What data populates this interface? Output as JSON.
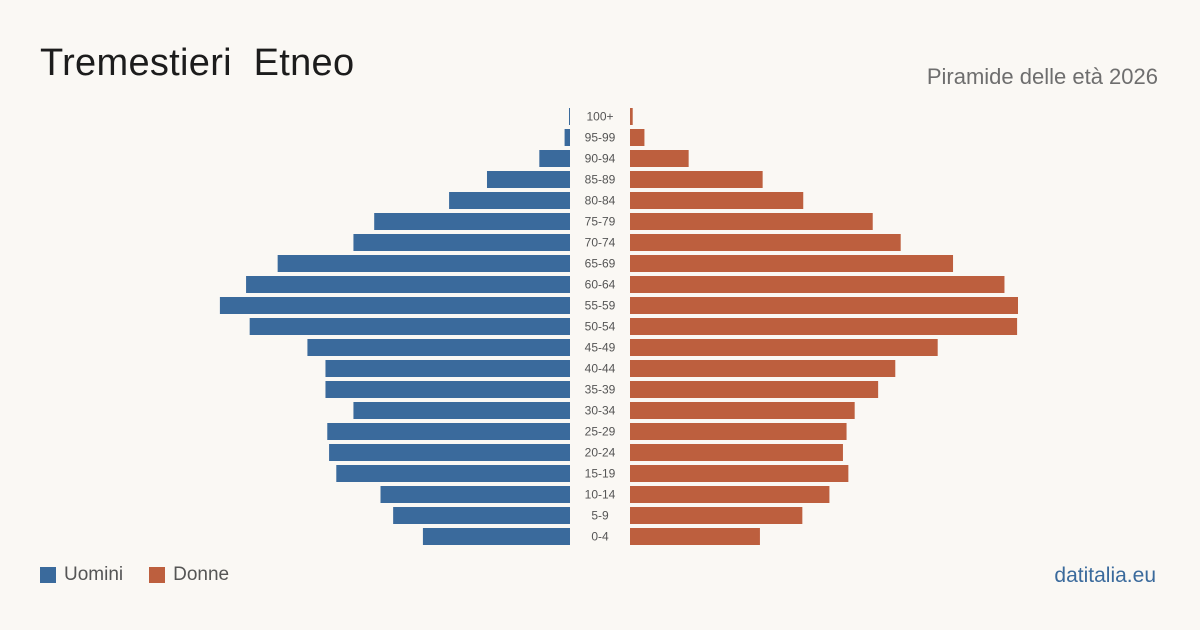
{
  "header": {
    "title": "Tremestieri  Etneo",
    "subtitle": "Piramide delle età 2026"
  },
  "legend": {
    "men_label": "Uomini",
    "women_label": "Donne"
  },
  "footer": {
    "brand": "datitalia.eu"
  },
  "colors": {
    "men": "#3a6a9c",
    "women": "#bd5f3e",
    "background": "#faf8f4"
  },
  "chart_data": {
    "type": "bar",
    "orientation": "horizontal",
    "layout": "population-pyramid",
    "categories": [
      "100+",
      "95-99",
      "90-94",
      "85-89",
      "80-84",
      "75-79",
      "70-74",
      "65-69",
      "60-64",
      "55-59",
      "50-54",
      "45-49",
      "40-44",
      "35-39",
      "30-34",
      "25-29",
      "20-24",
      "15-19",
      "10-14",
      "5-9",
      "0-4"
    ],
    "series": [
      {
        "name": "Uomini",
        "values": [
          1,
          6,
          34,
          92,
          134,
          217,
          240,
          324,
          359,
          388,
          355,
          291,
          271,
          271,
          240,
          269,
          267,
          259,
          210,
          196,
          163
        ]
      },
      {
        "name": "Donne",
        "values": [
          3,
          16,
          65,
          147,
          192,
          269,
          300,
          358,
          415,
          430,
          429,
          341,
          294,
          275,
          249,
          240,
          236,
          242,
          221,
          191,
          144
        ]
      }
    ],
    "legend_position": "bottom-left",
    "grid": false
  }
}
